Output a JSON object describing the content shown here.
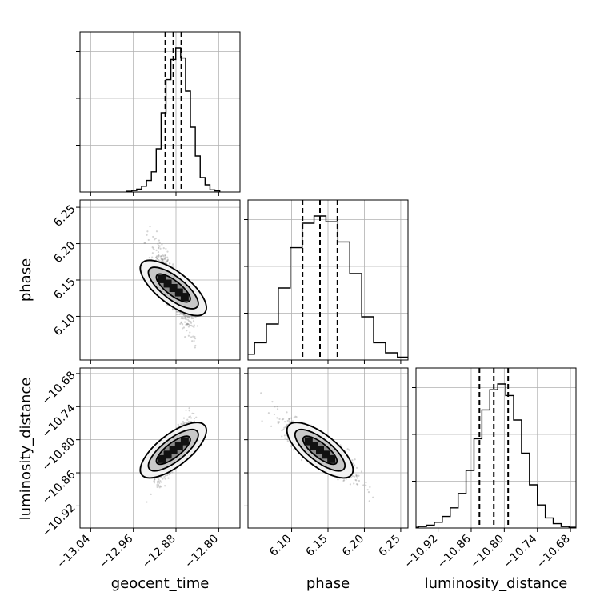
{
  "chart_data": {
    "type": "corner",
    "parameters": [
      "geocent_time",
      "phase",
      "luminosity_distance"
    ],
    "ranges": {
      "geocent_time": [
        -13.06,
        -12.76
      ],
      "phase": [
        6.04,
        6.26
      ],
      "luminosity_distance": [
        -10.96,
        -10.67
      ]
    },
    "ticks": {
      "geocent_time": {
        "values": [
          -13.04,
          -12.96,
          -12.88,
          -12.8
        ],
        "labels": [
          "−13.04",
          "−12.96",
          "−12.88",
          "−12.80"
        ]
      },
      "phase": {
        "values": [
          6.1,
          6.15,
          6.2,
          6.25
        ],
        "labels": [
          "6.10",
          "6.15",
          "6.20",
          "6.25"
        ]
      },
      "luminosity_distance": {
        "values": [
          -10.92,
          -10.86,
          -10.8,
          -10.74,
          -10.68
        ],
        "labels": [
          "−10.92",
          "−10.86",
          "−10.80",
          "−10.74",
          "−10.68"
        ]
      }
    },
    "quantiles": {
      "geocent_time": [
        -12.9,
        -12.885,
        -12.87
      ],
      "phase": [
        6.115,
        6.139,
        6.163
      ],
      "luminosity_distance": [
        -10.845,
        -10.819,
        -10.793
      ]
    },
    "histograms": {
      "geocent_time": [
        0.005,
        0.01,
        0.02,
        0.04,
        0.08,
        0.14,
        0.3,
        0.55,
        0.78,
        0.92,
        1.0,
        0.93,
        0.7,
        0.45,
        0.25,
        0.1,
        0.05,
        0.015,
        0.008
      ],
      "phase": [
        0.01,
        0.02,
        0.04,
        0.12,
        0.25,
        0.5,
        0.78,
        0.95,
        1.0,
        0.96,
        0.82,
        0.6,
        0.3,
        0.12,
        0.05,
        0.02,
        0.01
      ],
      "luminosity_distance": [
        0.005,
        0.01,
        0.02,
        0.04,
        0.08,
        0.14,
        0.24,
        0.4,
        0.62,
        0.82,
        0.96,
        1.0,
        0.92,
        0.75,
        0.52,
        0.3,
        0.16,
        0.07,
        0.03,
        0.01,
        0.005
      ]
    },
    "correlations": {
      "phase_vs_geocent_time": "negative",
      "luminosity_distance_vs_geocent_time": "positive",
      "luminosity_distance_vs_phase": "negative"
    },
    "grid": true,
    "colors": {
      "line": "#000000",
      "grid": "#b0b0b0",
      "samples": "#808080"
    }
  }
}
